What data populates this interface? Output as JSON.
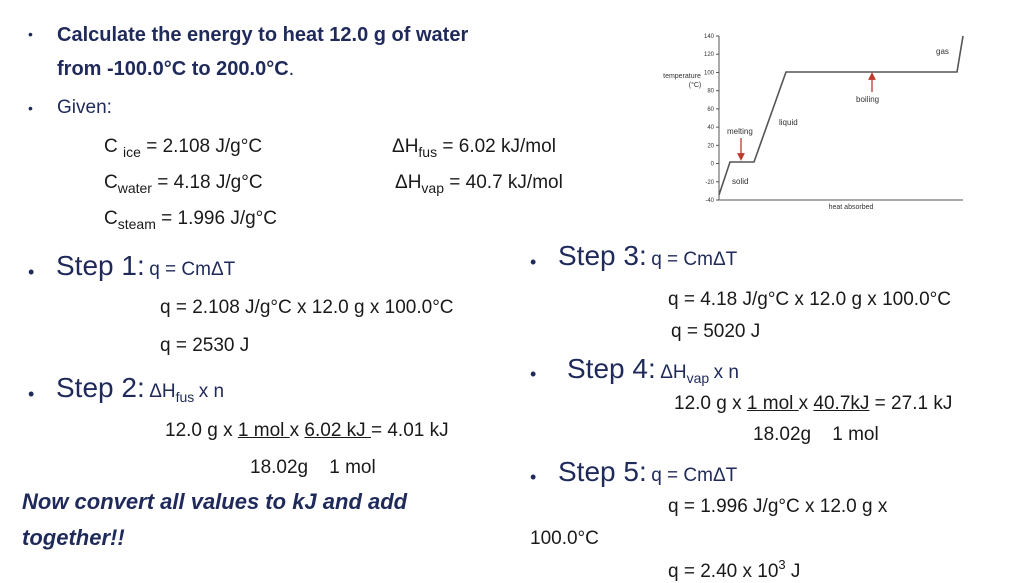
{
  "bullet": "•",
  "intro": {
    "line1": "Calculate the energy to heat 12.0 g of water",
    "line2": "from -100.0°C to 200.0°C",
    "line2_end": ".",
    "given": "Given:"
  },
  "constants": {
    "c_ice_prefix": "C",
    "c_ice_sub": "ice",
    "c_ice_value": "= 2.108 J/g°C",
    "c_water_prefix": "C",
    "c_water_sub": "water",
    "c_water_value": "= 4.18 J/g°C",
    "c_steam_prefix": "C",
    "c_steam_sub": "steam",
    "c_steam_value": "= 1.996 J/g°C",
    "hfus_prefix": "ΔH",
    "hfus_sub": "fus",
    "hfus_value": "= 6.02 kJ/mol",
    "hvap_prefix": "ΔH",
    "hvap_sub": "vap",
    "hvap_value": "= 40.7 kJ/mol"
  },
  "step1": {
    "label": "Step 1:",
    "formula": "q = CmΔT",
    "calc": "q = 2.108 J/g°C x 12.0 g x 100.0°C",
    "result": "q = 2530 J"
  },
  "step2": {
    "label": "Step 2:",
    "formula_prefix": "ΔH",
    "formula_sub": "fus",
    "formula_suffix": "x n",
    "calc_a": "12.0 g x ",
    "calc_b": "1 mol ",
    "calc_c": "x ",
    "calc_d": "6.02 kJ ",
    "calc_e": " = 4.01 kJ",
    "denominator": "18.02g    1 mol"
  },
  "step3": {
    "label": "Step 3:",
    "formula": "q = CmΔT",
    "calc": "q = 4.18 J/g°C x 12.0 g x 100.0°C",
    "result": "q = 5020 J"
  },
  "step4": {
    "label": "Step 4:",
    "formula_prefix": "ΔH",
    "formula_sub": "vap",
    "formula_suffix": "x n",
    "calc_a": "12.0 g x ",
    "calc_b": "1 mol ",
    "calc_c": "x ",
    "calc_d": "40.7kJ",
    "calc_e": " = 27.1 kJ",
    "denominator": "18.02g    1 mol"
  },
  "step5": {
    "label": "Step 5:",
    "formula": "q = CmΔT",
    "calc_line1": "q = 1.996 J/g°C x 12.0 g x",
    "calc_line2": "100.0°C",
    "result_prefix": "q = 2.40 x 10",
    "result_exp": "3",
    "result_suffix": " J"
  },
  "conclusion": {
    "line1": "Now convert all values to kJ and add",
    "line2": "together!!"
  },
  "graph": {
    "y_label_line1": "temperature",
    "y_label_line2": "(°C)",
    "x_label": "heat absorbed",
    "y_ticks": [
      "140",
      "120",
      "100",
      "80",
      "60",
      "40",
      "20",
      "0",
      "-20",
      "-40"
    ],
    "labels": {
      "gas": "gas",
      "boiling": "boiling",
      "liquid": "liquid",
      "melting": "melting",
      "solid": "solid"
    },
    "arrow_color": "#c0392b"
  }
}
